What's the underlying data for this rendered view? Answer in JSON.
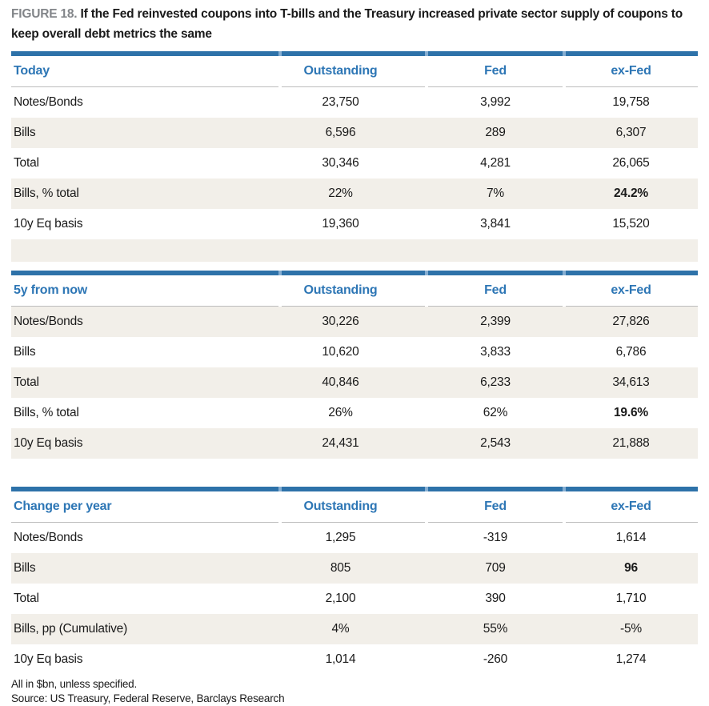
{
  "figure": {
    "label": "FIGURE 18.",
    "title": "If the Fed reinvested coupons into T-bills and the Treasury increased private sector supply of coupons to keep overall debt metrics the same"
  },
  "columns": [
    "Outstanding",
    "Fed",
    "ex-Fed"
  ],
  "tables": [
    {
      "title": "Today",
      "rows": [
        {
          "label": "Notes/Bonds",
          "values": [
            "23,750",
            "3,992",
            "19,758"
          ]
        },
        {
          "label": "Bills",
          "values": [
            "6,596",
            "289",
            "6,307"
          ]
        },
        {
          "label": "Total",
          "values": [
            "30,346",
            "4,281",
            "26,065"
          ]
        },
        {
          "label": "Bills, % total",
          "values": [
            "22%",
            "7%",
            "24.2%"
          ]
        },
        {
          "label": "10y Eq basis",
          "values": [
            "19,360",
            "3,841",
            "15,520"
          ]
        }
      ]
    },
    {
      "title": "5y from now",
      "rows": [
        {
          "label": "Notes/Bonds",
          "values": [
            "30,226",
            "2,399",
            "27,826"
          ]
        },
        {
          "label": "Bills",
          "values": [
            "10,620",
            "3,833",
            "6,786"
          ]
        },
        {
          "label": "Total",
          "values": [
            "40,846",
            "6,233",
            "34,613"
          ]
        },
        {
          "label": "Bills, % total",
          "values": [
            "26%",
            "62%",
            "19.6%"
          ]
        },
        {
          "label": "10y Eq basis",
          "values": [
            "24,431",
            "2,543",
            "21,888"
          ]
        }
      ]
    },
    {
      "title": "Change per year",
      "rows": [
        {
          "label": "Notes/Bonds",
          "values": [
            "1,295",
            "-319",
            "1,614"
          ]
        },
        {
          "label": "Bills",
          "values": [
            "805",
            "709",
            "96"
          ]
        },
        {
          "label": "Total",
          "values": [
            "2,100",
            "390",
            "1,710"
          ]
        },
        {
          "label": "Bills, pp (Cumulative)",
          "values": [
            "4%",
            "55%",
            "-5%"
          ]
        },
        {
          "label": "10y Eq basis",
          "values": [
            "1,014",
            "-260",
            "1,274"
          ]
        }
      ]
    }
  ],
  "footnotes": [
    "All in $bn, unless specified.",
    "Source: US Treasury, Federal Reserve, Barclays Research"
  ],
  "colors": {
    "accent_blue": "#2d76b5",
    "bar_blue": "#2e72a9",
    "bar_gap_blue": "#85aed2",
    "stripe_beige": "#f2efe9",
    "figure_label_gray": "#828589",
    "rule_gray": "#bcbcbc",
    "text": "#1a1a1a"
  }
}
